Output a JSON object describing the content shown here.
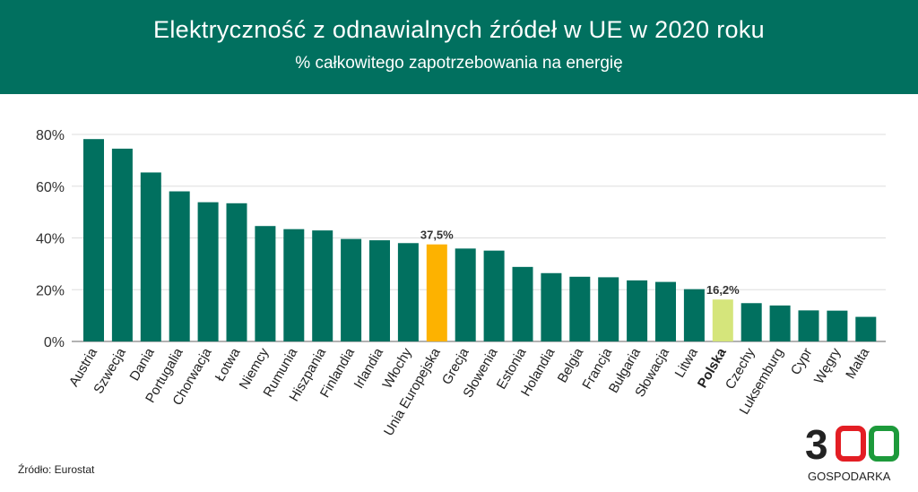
{
  "header": {
    "title": "Elektryczność z odnawialnych źródeł w UE w 2020 roku",
    "subtitle": "% całkowitego zapotrzebowania na energię"
  },
  "source": "Źródło: Eurostat",
  "logo": {
    "text": "300",
    "subtext": "GOSPODARKA"
  },
  "chart_data": {
    "type": "bar",
    "title": "Elektryczność z odnawialnych źródeł w UE w 2020 roku",
    "subtitle": "% całkowitego zapotrzebowania na energię",
    "categories": [
      "Austria",
      "Szwecja",
      "Dania",
      "Portugalia",
      "Chorwacja",
      "Łotwa",
      "Niemcy",
      "Rumunia",
      "Hiszpania",
      "Finlandia",
      "Irlandia",
      "Włochy",
      "Unia Europejska",
      "Grecja",
      "Słowenia",
      "Estonia",
      "Holandia",
      "Belgia",
      "Francja",
      "Bułgaria",
      "Słowacja",
      "Litwa",
      "Polska",
      "Czechy",
      "Luksemburg",
      "Cypr",
      "Węgry",
      "Malta"
    ],
    "values": [
      78.2,
      74.5,
      65.3,
      58,
      53.8,
      53.4,
      44.6,
      43.4,
      42.9,
      39.6,
      39.1,
      38,
      37.5,
      35.9,
      35.1,
      28.8,
      26.4,
      25,
      24.8,
      23.6,
      23,
      20.2,
      16.2,
      14.8,
      13.9,
      12,
      11.9,
      9.5
    ],
    "ylim": [
      0,
      80
    ],
    "yticks": [
      0,
      20,
      40,
      60,
      80
    ],
    "ytick_labels": [
      "0%",
      "20%",
      "40%",
      "60%",
      "80%"
    ],
    "grid": true,
    "data_labels": {
      "Unia Europejska": "37,5%",
      "Polska": "16,2%"
    },
    "colors": {
      "default": "#01705f",
      "Unia Europejska": "#fdb200",
      "Polska": "#d5e57b"
    },
    "bold_categories": [
      "Polska"
    ]
  }
}
